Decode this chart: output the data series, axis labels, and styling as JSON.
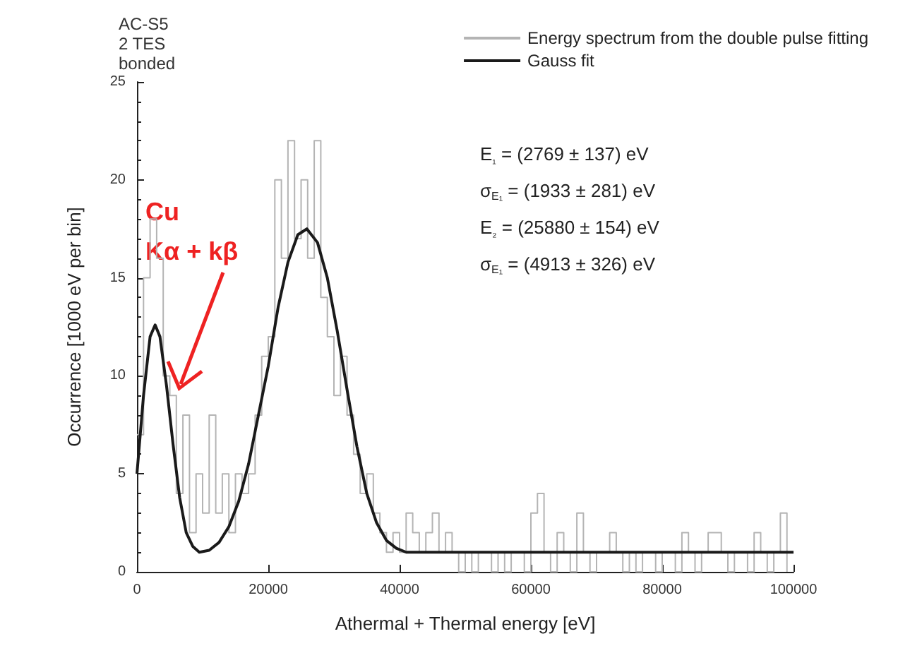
{
  "chart_data": {
    "type": "step",
    "xlabel": "Athermal + Thermal energy [eV]",
    "ylabel": "Occurrence [1000 eV per bin]",
    "xlim": [
      0,
      100000
    ],
    "xticks": [
      0,
      20000,
      40000,
      60000,
      80000,
      100000
    ],
    "ylim": [
      0,
      25
    ],
    "yticks": [
      0,
      5,
      10,
      15,
      20,
      25
    ],
    "grid": false,
    "legend": "top right",
    "annotations": [
      "AC-S5\n2 TES\nbonded",
      "E$_{₁}$ = (2769 ± 137) eV",
      "σ$_{E₁}$ = (1933 ± 281) eV",
      "E$_{₂}$ = (25880 ± 154) eV",
      "σ$_{E₁}$ = (4913 ± 326) eV",
      "Cu",
      "Kα + kβ"
    ],
    "series": [
      {
        "name": "Energy spectrum from the double pulse fitting",
        "color": "#b4b4b4",
        "x": [
          0,
          1000,
          2000,
          3000,
          4000,
          5000,
          6000,
          7000,
          8000,
          9000,
          10000,
          11000,
          12000,
          13000,
          14000,
          15000,
          16000,
          17000,
          18000,
          19000,
          20000,
          21000,
          22000,
          23000,
          24000,
          25000,
          26000,
          27000,
          28000,
          29000,
          30000,
          31000,
          32000,
          33000,
          34000,
          35000,
          36000,
          37000,
          38000,
          39000,
          40000,
          41000,
          42000,
          43000,
          44000,
          45000,
          46000,
          47000,
          48000,
          49000,
          50000,
          51000,
          52000,
          53000,
          54000,
          55000,
          56000,
          57000,
          58000,
          59000,
          60000,
          61000,
          62000,
          63000,
          64000,
          65000,
          66000,
          67000,
          68000,
          69000,
          70000,
          71000,
          72000,
          73000,
          74000,
          75000,
          76000,
          77000,
          78000,
          79000,
          80000,
          81000,
          82000,
          83000,
          84000,
          85000,
          86000,
          87000,
          88000,
          89000,
          90000,
          91000,
          92000,
          93000,
          94000,
          95000,
          96000,
          97000,
          98000,
          99000
        ],
        "values": [
          7,
          15,
          18,
          16,
          10,
          9,
          4,
          8,
          2,
          5,
          3,
          8,
          3,
          5,
          2,
          5,
          4,
          5,
          8,
          11,
          12,
          20,
          16,
          22,
          17,
          20,
          16,
          22,
          14,
          12,
          9,
          11,
          8,
          6,
          4,
          5,
          3,
          2,
          1,
          2,
          1,
          3,
          2,
          1,
          2,
          3,
          1,
          2,
          1,
          0,
          1,
          0,
          1,
          1,
          0,
          1,
          0,
          1,
          1,
          0,
          3,
          4,
          1,
          0,
          2,
          1,
          0,
          3,
          1,
          0,
          1,
          1,
          2,
          1,
          0,
          1,
          0,
          1,
          1,
          0,
          1,
          1,
          0,
          2,
          1,
          0,
          1,
          2,
          2,
          1,
          0,
          1,
          1,
          0,
          2,
          1,
          0,
          1,
          3,
          0
        ]
      },
      {
        "name": "Gauss fit",
        "type": "line",
        "color": "#1a1a1a",
        "x": [
          0,
          1000,
          2000,
          2769,
          3500,
          4500,
          5500,
          6500,
          7500,
          8500,
          9500,
          11000,
          12500,
          14000,
          15500,
          17000,
          18500,
          20000,
          21500,
          23000,
          24500,
          25880,
          27500,
          29000,
          30500,
          32000,
          33500,
          35000,
          36500,
          38000,
          39500,
          41000,
          43000,
          50000,
          60000,
          70000,
          80000,
          90000,
          100000
        ],
        "values": [
          5,
          9,
          12,
          12.6,
          12,
          9.5,
          6.5,
          3.8,
          2,
          1.3,
          1,
          1.1,
          1.5,
          2.3,
          3.6,
          5.5,
          8,
          10.5,
          13.5,
          15.8,
          17.2,
          17.5,
          16.8,
          15,
          12.3,
          9.3,
          6.4,
          4,
          2.5,
          1.6,
          1.2,
          1,
          1,
          1,
          1,
          1,
          1,
          1,
          1
        ]
      }
    ]
  }
}
